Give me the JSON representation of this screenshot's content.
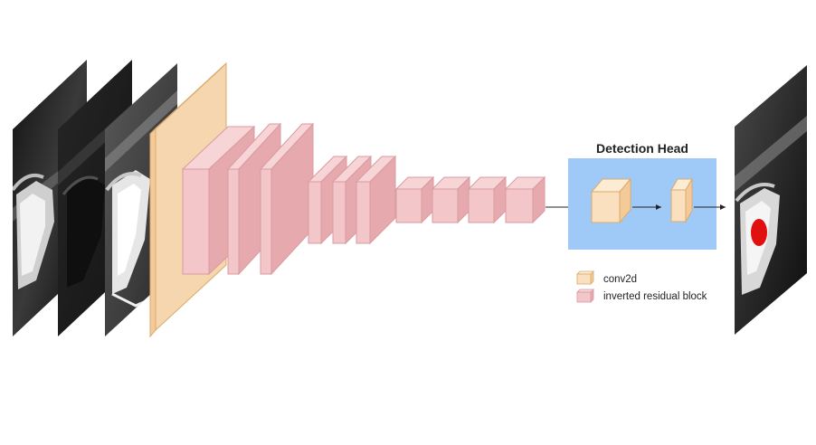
{
  "detection_head": {
    "title": "Detection Head"
  },
  "legend": {
    "items": [
      {
        "label": "conv2d",
        "type": "conv2d"
      },
      {
        "label": "inverted residual block",
        "type": "inverted-residual-block"
      }
    ]
  },
  "colors": {
    "conv2d_front": "#fbe0c0",
    "conv2d_side": "#f3ca98",
    "conv2d_edge": "#d9aa6c",
    "irb_front": "#f3c6c9",
    "irb_side": "#e6a9ae",
    "irb_edge": "#d99aa0",
    "head_bg": "#9fcaf8",
    "detection_marker": "#e01010"
  },
  "counts": {
    "input_channels": 3,
    "inverted_residual_blocks": 10,
    "head_conv2d_layers": 2
  }
}
